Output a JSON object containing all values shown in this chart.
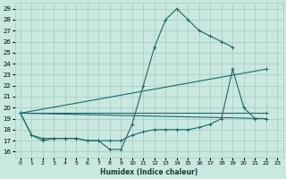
{
  "title": "",
  "xlabel": "Humidex (Indice chaleur)",
  "background_color": "#c8e8e0",
  "grid_color": "#a8c8c0",
  "line_color": "#1a6b6b",
  "xlim": [
    -0.5,
    23.5
  ],
  "ylim": [
    15.5,
    29.5
  ],
  "yticks": [
    16,
    17,
    18,
    19,
    20,
    21,
    22,
    23,
    24,
    25,
    26,
    27,
    28,
    29
  ],
  "xticks": [
    0,
    1,
    2,
    3,
    4,
    5,
    6,
    7,
    8,
    9,
    10,
    11,
    12,
    13,
    14,
    15,
    16,
    17,
    18,
    19,
    20,
    21,
    22,
    23
  ],
  "lines": [
    {
      "x": [
        0,
        1,
        2,
        3,
        4,
        5,
        6,
        7,
        8,
        9,
        10,
        11,
        12,
        13,
        14,
        15,
        16,
        17,
        18,
        19
      ],
      "y": [
        19.5,
        17.5,
        17.0,
        17.2,
        17.2,
        17.2,
        17.0,
        17.0,
        16.2,
        16.2,
        18.5,
        22.0,
        25.5,
        28.0,
        29.0,
        28.0,
        27.0,
        26.5,
        26.0,
        25.5
      ]
    },
    {
      "x": [
        0,
        22
      ],
      "y": [
        19.5,
        19.0
      ]
    },
    {
      "x": [
        0,
        22
      ],
      "y": [
        19.5,
        19.5
      ]
    },
    {
      "x": [
        0,
        22
      ],
      "y": [
        19.5,
        23.5
      ]
    },
    {
      "x": [
        0,
        1,
        2,
        3,
        4,
        5,
        6,
        7,
        8,
        9,
        10,
        11,
        12,
        13,
        14,
        15,
        16,
        17,
        18,
        19,
        20,
        21,
        22
      ],
      "y": [
        19.5,
        17.5,
        17.2,
        17.2,
        17.2,
        17.2,
        17.0,
        17.0,
        17.0,
        17.0,
        17.5,
        17.8,
        18.0,
        18.0,
        18.0,
        18.0,
        18.2,
        18.5,
        19.0,
        23.5,
        20.0,
        19.0,
        19.0
      ]
    }
  ]
}
